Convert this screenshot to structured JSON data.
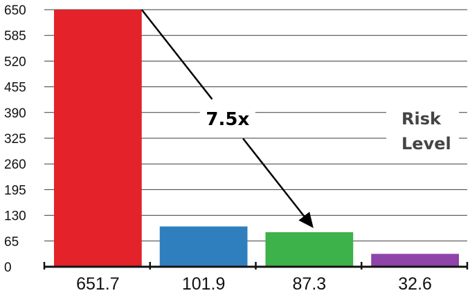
{
  "chart_data": {
    "type": "bar",
    "categories": [
      "651.7",
      "101.9",
      "87.3",
      "32.6"
    ],
    "values": [
      651.7,
      101.9,
      87.3,
      32.6
    ],
    "colors": [
      "#e3222a",
      "#2f7fbf",
      "#3db14a",
      "#8e44a8"
    ],
    "ylim": [
      0,
      650
    ],
    "yticks": [
      0,
      65,
      130,
      195,
      260,
      325,
      390,
      455,
      520,
      585,
      650
    ],
    "grid": true,
    "title": "",
    "xlabel": "",
    "ylabel": "",
    "annotation": {
      "label": "7.5x",
      "from_category": "651.7",
      "to_category": "87.3"
    },
    "side_label": [
      "Risk",
      "Level"
    ]
  }
}
